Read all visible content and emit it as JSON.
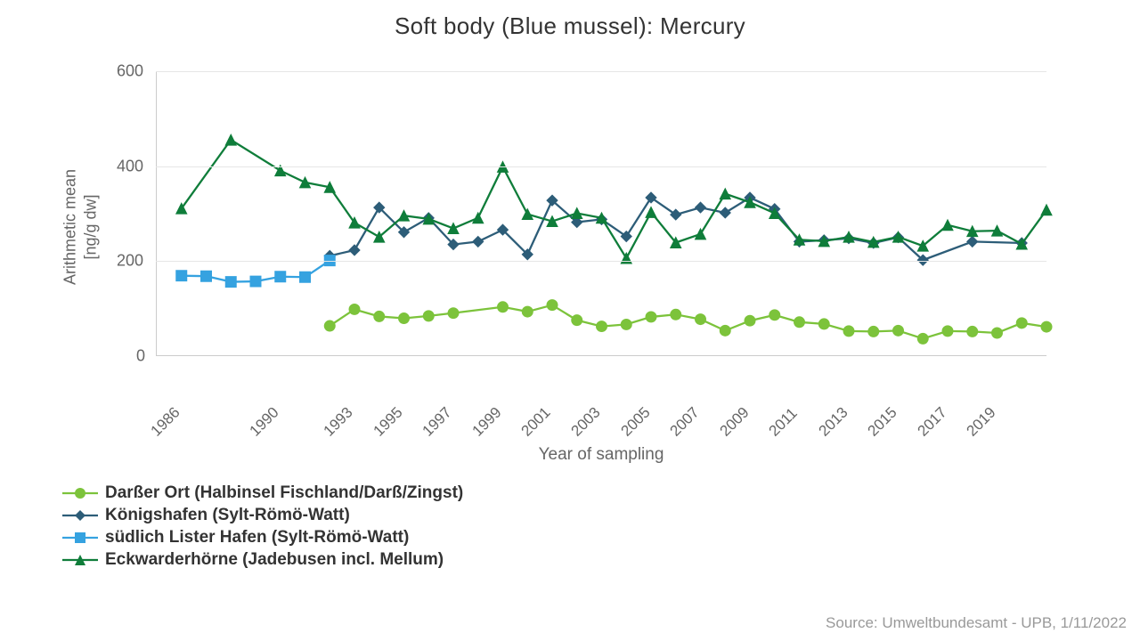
{
  "title": "Soft body (Blue mussel): Mercury",
  "yaxis": {
    "label_line1": "Arithmetic mean",
    "label_line2": "[ng/g dw]",
    "min": 0,
    "max": 600,
    "ticks": [
      0,
      200,
      400,
      600
    ]
  },
  "xaxis": {
    "label": "Year of sampling",
    "min": 1985,
    "max": 2021,
    "ticks": [
      1986,
      1990,
      1993,
      1995,
      1997,
      1999,
      2001,
      2003,
      2005,
      2007,
      2009,
      2011,
      2013,
      2015,
      2017,
      2019
    ]
  },
  "grid_color": "#e6e6e6",
  "axis_text_color": "#666666",
  "background_color": "#ffffff",
  "series": [
    {
      "key": "darsser",
      "label": "Darßer Ort (Halbinsel Fischland/Darß/Zingst)",
      "color": "#7cc33b",
      "marker": "circle",
      "data": [
        {
          "x": 1992,
          "y": 62
        },
        {
          "x": 1993,
          "y": 97
        },
        {
          "x": 1994,
          "y": 82
        },
        {
          "x": 1995,
          "y": 78
        },
        {
          "x": 1996,
          "y": 83
        },
        {
          "x": 1997,
          "y": 89
        },
        {
          "x": 1999,
          "y": 102
        },
        {
          "x": 2000,
          "y": 92
        },
        {
          "x": 2001,
          "y": 106
        },
        {
          "x": 2002,
          "y": 74
        },
        {
          "x": 2003,
          "y": 61
        },
        {
          "x": 2004,
          "y": 65
        },
        {
          "x": 2005,
          "y": 81
        },
        {
          "x": 2006,
          "y": 86
        },
        {
          "x": 2007,
          "y": 76
        },
        {
          "x": 2008,
          "y": 52
        },
        {
          "x": 2009,
          "y": 73
        },
        {
          "x": 2010,
          "y": 85
        },
        {
          "x": 2011,
          "y": 70
        },
        {
          "x": 2012,
          "y": 66
        },
        {
          "x": 2013,
          "y": 51
        },
        {
          "x": 2014,
          "y": 50
        },
        {
          "x": 2015,
          "y": 52
        },
        {
          "x": 2016,
          "y": 35
        },
        {
          "x": 2017,
          "y": 51
        },
        {
          "x": 2018,
          "y": 50
        },
        {
          "x": 2019,
          "y": 47
        },
        {
          "x": 2020,
          "y": 68
        },
        {
          "x": 2021,
          "y": 60
        }
      ]
    },
    {
      "key": "koenigshafen",
      "label": "Königshafen (Sylt-Römö-Watt)",
      "color": "#2d5d78",
      "marker": "diamond",
      "data": [
        {
          "x": 1992,
          "y": 210
        },
        {
          "x": 1993,
          "y": 222
        },
        {
          "x": 1994,
          "y": 312
        },
        {
          "x": 1995,
          "y": 260
        },
        {
          "x": 1996,
          "y": 290
        },
        {
          "x": 1997,
          "y": 234
        },
        {
          "x": 1998,
          "y": 240
        },
        {
          "x": 1999,
          "y": 265
        },
        {
          "x": 2000,
          "y": 213
        },
        {
          "x": 2001,
          "y": 327
        },
        {
          "x": 2002,
          "y": 281
        },
        {
          "x": 2003,
          "y": 287
        },
        {
          "x": 2004,
          "y": 251
        },
        {
          "x": 2005,
          "y": 333
        },
        {
          "x": 2006,
          "y": 297
        },
        {
          "x": 2007,
          "y": 312
        },
        {
          "x": 2008,
          "y": 301
        },
        {
          "x": 2009,
          "y": 333
        },
        {
          "x": 2010,
          "y": 309
        },
        {
          "x": 2011,
          "y": 240
        },
        {
          "x": 2012,
          "y": 243
        },
        {
          "x": 2013,
          "y": 247
        },
        {
          "x": 2014,
          "y": 237
        },
        {
          "x": 2015,
          "y": 249
        },
        {
          "x": 2016,
          "y": 201
        },
        {
          "x": 2018,
          "y": 240
        },
        {
          "x": 2020,
          "y": 237
        }
      ]
    },
    {
      "key": "lister",
      "label": "südlich Lister Hafen (Sylt-Römö-Watt)",
      "color": "#35a2e0",
      "marker": "square",
      "data": [
        {
          "x": 1986,
          "y": 168
        },
        {
          "x": 1987,
          "y": 167
        },
        {
          "x": 1988,
          "y": 155
        },
        {
          "x": 1989,
          "y": 156
        },
        {
          "x": 1990,
          "y": 166
        },
        {
          "x": 1991,
          "y": 165
        },
        {
          "x": 1992,
          "y": 200
        }
      ]
    },
    {
      "key": "eckwarder",
      "label": "Eckwarderhörne (Jadebusen incl. Mellum)",
      "color": "#0f7d3a",
      "marker": "triangle",
      "data": [
        {
          "x": 1986,
          "y": 310
        },
        {
          "x": 1988,
          "y": 455
        },
        {
          "x": 1990,
          "y": 390
        },
        {
          "x": 1991,
          "y": 365
        },
        {
          "x": 1992,
          "y": 355
        },
        {
          "x": 1993,
          "y": 280
        },
        {
          "x": 1994,
          "y": 250
        },
        {
          "x": 1995,
          "y": 295
        },
        {
          "x": 1996,
          "y": 288
        },
        {
          "x": 1997,
          "y": 268
        },
        {
          "x": 1998,
          "y": 290
        },
        {
          "x": 1999,
          "y": 398
        },
        {
          "x": 2000,
          "y": 298
        },
        {
          "x": 2001,
          "y": 283
        },
        {
          "x": 2002,
          "y": 300
        },
        {
          "x": 2003,
          "y": 290
        },
        {
          "x": 2004,
          "y": 205
        },
        {
          "x": 2005,
          "y": 302
        },
        {
          "x": 2006,
          "y": 238
        },
        {
          "x": 2007,
          "y": 256
        },
        {
          "x": 2008,
          "y": 341
        },
        {
          "x": 2009,
          "y": 323
        },
        {
          "x": 2010,
          "y": 300
        },
        {
          "x": 2011,
          "y": 244
        },
        {
          "x": 2012,
          "y": 241
        },
        {
          "x": 2013,
          "y": 250
        },
        {
          "x": 2014,
          "y": 239
        },
        {
          "x": 2015,
          "y": 250
        },
        {
          "x": 2016,
          "y": 231
        },
        {
          "x": 2017,
          "y": 275
        },
        {
          "x": 2018,
          "y": 262
        },
        {
          "x": 2019,
          "y": 263
        },
        {
          "x": 2020,
          "y": 235
        },
        {
          "x": 2021,
          "y": 307
        }
      ]
    }
  ],
  "line_width": 2.3,
  "marker_size": 6,
  "legend_fontsize": 19,
  "title_fontsize": 26,
  "source": "Source: Umweltbundesamt - UPB, 1/11/2022"
}
